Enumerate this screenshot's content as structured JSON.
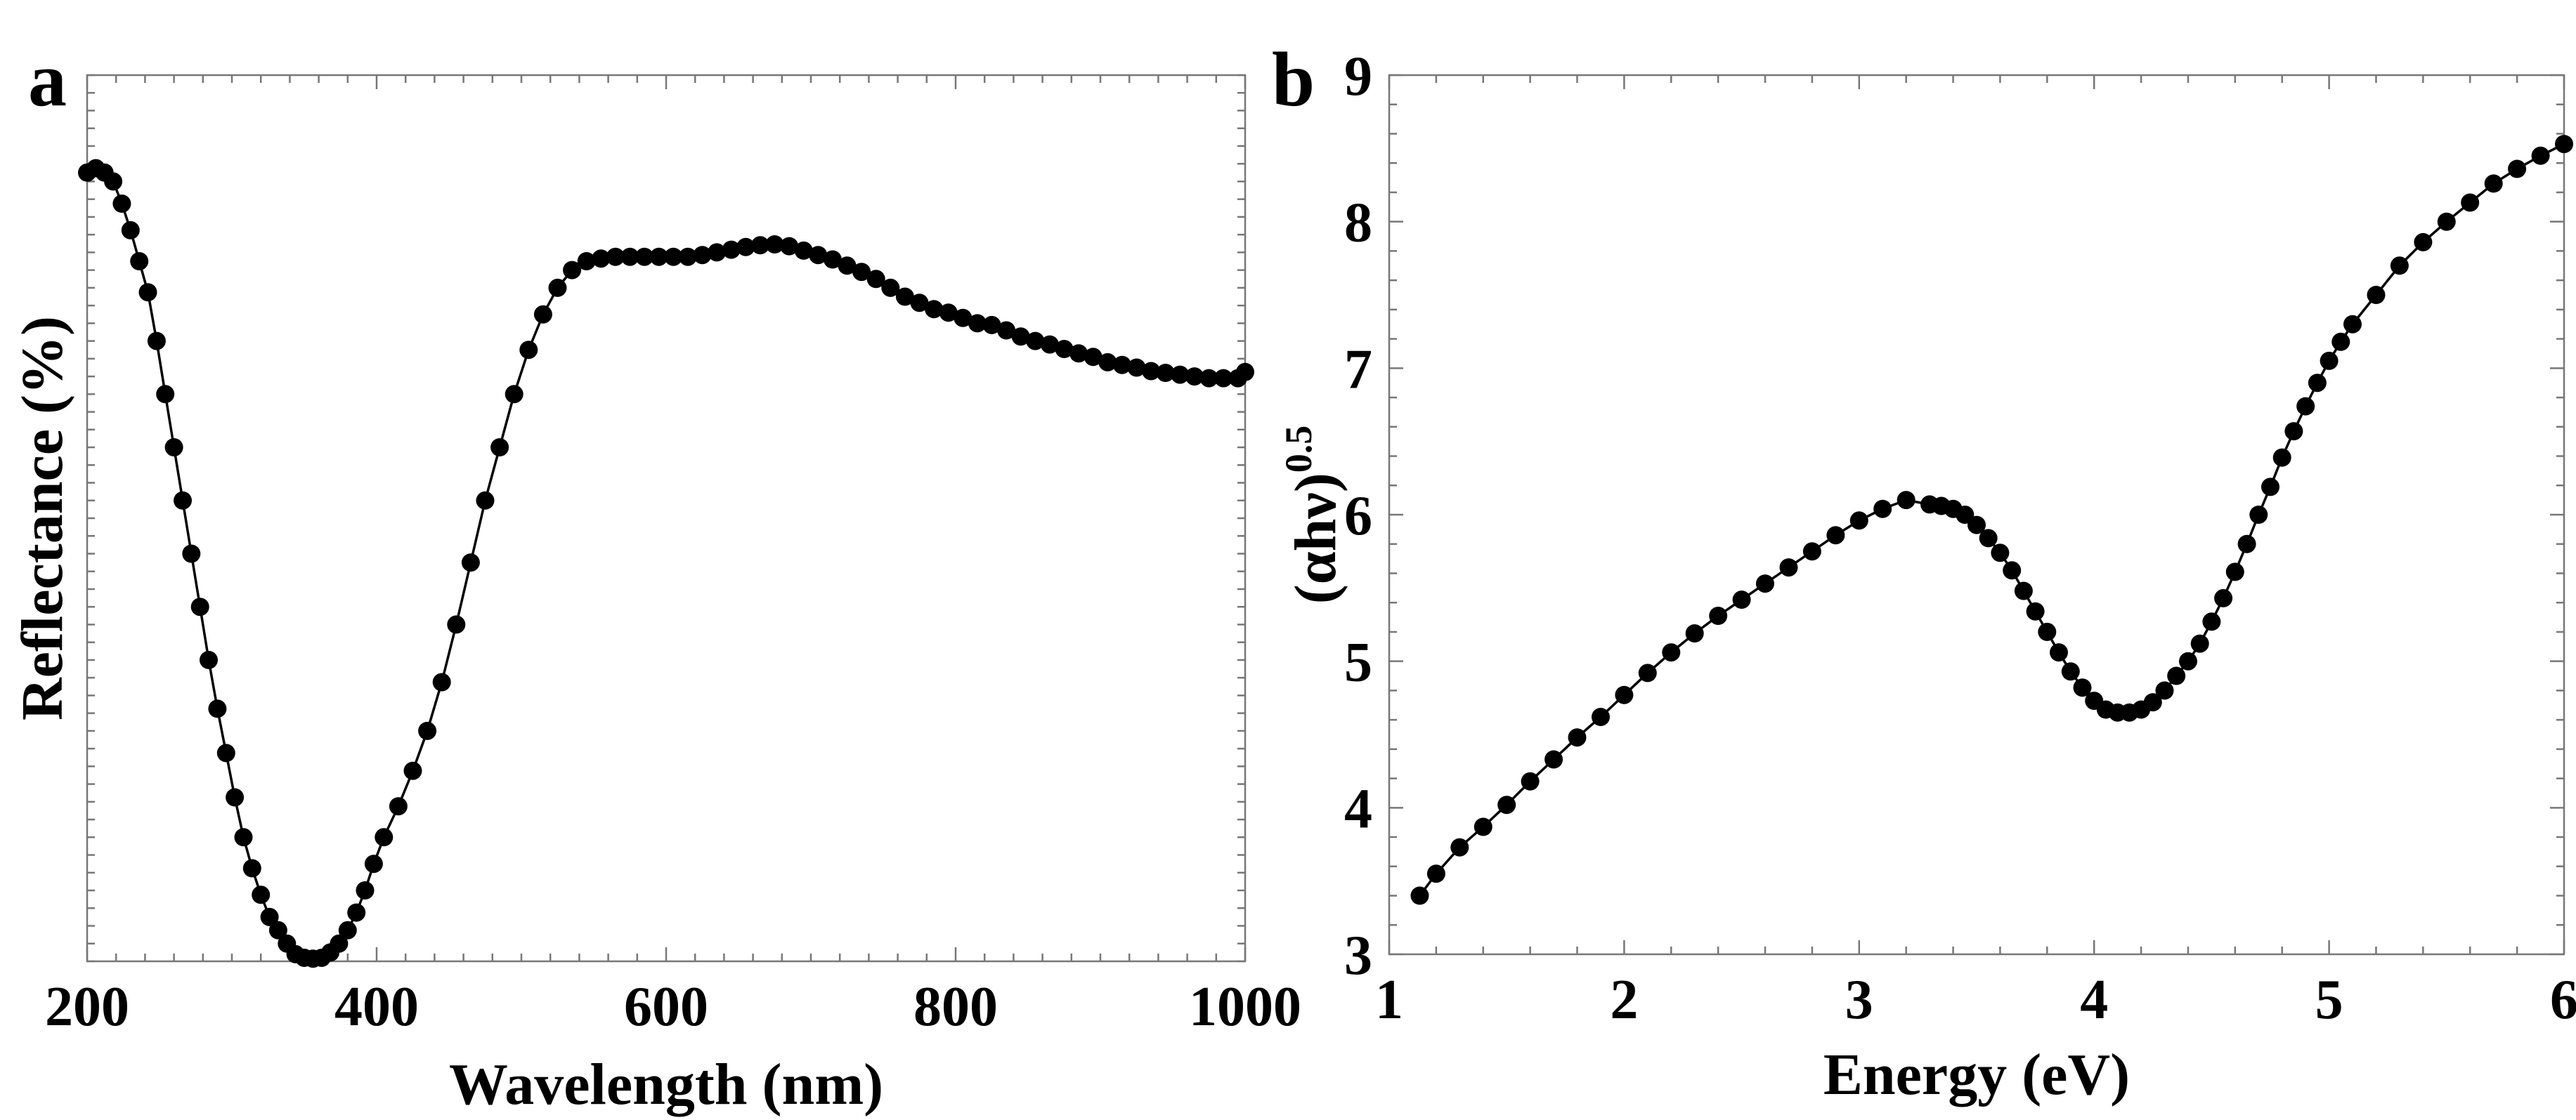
{
  "chart_data": [
    {
      "panel": "a",
      "type": "line",
      "title": "",
      "xlabel": "Wavelength (nm)",
      "ylabel": "Reflectance (%)",
      "xlim": [
        200,
        1000
      ],
      "ylim": [
        0,
        100
      ],
      "xticks": [
        200,
        400,
        600,
        800,
        1000
      ],
      "xtick_labels": [
        "200",
        "400",
        "600",
        "800",
        "1000"
      ],
      "yticks": [],
      "grid": false,
      "markers": true,
      "series": [
        {
          "name": "Reflectance",
          "x": [
            200,
            206,
            212,
            218,
            224,
            230,
            236,
            242,
            248,
            254,
            260,
            266,
            272,
            278,
            284,
            290,
            296,
            302,
            308,
            314,
            320,
            326,
            332,
            338,
            344,
            350,
            356,
            362,
            368,
            374,
            380,
            386,
            392,
            398,
            405,
            415,
            425,
            435,
            445,
            455,
            465,
            475,
            485,
            495,
            505,
            515,
            525,
            535,
            545,
            555,
            565,
            575,
            585,
            595,
            605,
            615,
            625,
            635,
            645,
            655,
            665,
            675,
            685,
            695,
            705,
            715,
            725,
            735,
            745,
            755,
            765,
            775,
            785,
            795,
            805,
            815,
            825,
            835,
            845,
            855,
            865,
            875,
            885,
            895,
            905,
            915,
            925,
            935,
            945,
            955,
            965,
            975,
            985,
            995,
            1000
          ],
          "y": [
            89,
            89.5,
            89,
            88,
            85.5,
            82.5,
            79,
            75.5,
            70,
            64,
            58,
            52,
            46,
            40,
            34,
            28.5,
            23.5,
            18.5,
            14,
            10.5,
            7.5,
            5,
            3.5,
            2,
            0.8,
            0.4,
            0.3,
            0.4,
            1,
            2,
            3.5,
            5.5,
            8,
            11,
            14,
            17.5,
            21.5,
            26,
            31.5,
            38,
            45,
            52,
            58,
            64,
            69,
            73,
            76,
            78,
            79,
            79.3,
            79.5,
            79.5,
            79.5,
            79.5,
            79.5,
            79.5,
            79.7,
            80,
            80.3,
            80.6,
            80.8,
            80.9,
            80.7,
            80.2,
            79.7,
            79.2,
            78.5,
            77.8,
            77,
            76,
            75,
            74.3,
            73.6,
            73.2,
            72.6,
            72,
            71.8,
            71.2,
            70.5,
            70,
            69.6,
            69.1,
            68.6,
            68.2,
            67.6,
            67.3,
            67,
            66.6,
            66.4,
            66.2,
            66.0,
            65.8,
            65.8,
            65.8,
            66.5
          ]
        }
      ]
    },
    {
      "panel": "b",
      "type": "line",
      "title": "",
      "xlabel": "Energy (eV)",
      "ylabel": "(αhν)",
      "ylabel_sup": "0.5",
      "xlim": [
        1,
        6
      ],
      "ylim": [
        3,
        9
      ],
      "xticks": [
        1,
        2,
        3,
        4,
        5,
        6
      ],
      "xtick_labels": [
        "1",
        "2",
        "3",
        "4",
        "5",
        "6"
      ],
      "yticks": [
        3,
        4,
        5,
        6,
        7,
        8,
        9
      ],
      "ytick_labels": [
        "3",
        "4",
        "5",
        "6",
        "7",
        "8",
        "9"
      ],
      "grid": false,
      "markers": true,
      "series": [
        {
          "name": "(αhν)^0.5",
          "x": [
            1.13,
            1.2,
            1.3,
            1.4,
            1.5,
            1.6,
            1.7,
            1.8,
            1.9,
            2.0,
            2.1,
            2.2,
            2.3,
            2.4,
            2.5,
            2.6,
            2.7,
            2.8,
            2.9,
            3.0,
            3.1,
            3.2,
            3.3,
            3.35,
            3.4,
            3.45,
            3.5,
            3.55,
            3.6,
            3.65,
            3.7,
            3.75,
            3.8,
            3.85,
            3.9,
            3.95,
            4.0,
            4.05,
            4.1,
            4.15,
            4.2,
            4.25,
            4.3,
            4.35,
            4.4,
            4.45,
            4.5,
            4.55,
            4.6,
            4.65,
            4.7,
            4.75,
            4.8,
            4.85,
            4.9,
            4.95,
            5.0,
            5.05,
            5.1,
            5.2,
            5.3,
            5.4,
            5.5,
            5.6,
            5.7,
            5.8,
            5.9,
            6.0
          ],
          "y": [
            3.4,
            3.55,
            3.73,
            3.87,
            4.02,
            4.18,
            4.33,
            4.48,
            4.62,
            4.77,
            4.92,
            5.06,
            5.19,
            5.31,
            5.42,
            5.53,
            5.64,
            5.75,
            5.86,
            5.96,
            6.04,
            6.1,
            6.07,
            6.06,
            6.04,
            6.0,
            5.93,
            5.84,
            5.74,
            5.62,
            5.48,
            5.34,
            5.2,
            5.06,
            4.93,
            4.82,
            4.73,
            4.67,
            4.65,
            4.65,
            4.67,
            4.72,
            4.8,
            4.9,
            5.0,
            5.12,
            5.27,
            5.43,
            5.61,
            5.8,
            6.0,
            6.19,
            6.39,
            6.57,
            6.74,
            6.9,
            7.05,
            7.18,
            7.3,
            7.5,
            7.7,
            7.86,
            8.0,
            8.13,
            8.26,
            8.36,
            8.45,
            8.53
          ]
        }
      ]
    }
  ]
}
